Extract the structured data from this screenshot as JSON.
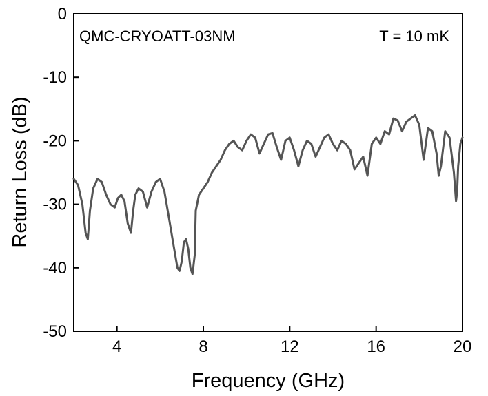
{
  "chart_data": {
    "type": "line",
    "title": "",
    "xlabel": "Frequency (GHz)",
    "ylabel": "Return Loss (dB)",
    "xlim": [
      2,
      20
    ],
    "ylim": [
      -50,
      0
    ],
    "xticks": [
      4,
      8,
      12,
      16,
      20
    ],
    "yticks": [
      0,
      -10,
      -20,
      -30,
      -40,
      -50
    ],
    "grid": false,
    "line_color": "#555555",
    "annotations": [
      {
        "text": "QMC-CRYOATT-03NM",
        "position": "top-left"
      },
      {
        "text": "T = 10 mK",
        "position": "top-right"
      }
    ],
    "series": [
      {
        "x": [
          2.0,
          2.2,
          2.4,
          2.55,
          2.65,
          2.75,
          2.9,
          3.1,
          3.3,
          3.5,
          3.7,
          3.9,
          4.05,
          4.2,
          4.35,
          4.5,
          4.65,
          4.75,
          4.85,
          5.0,
          5.2,
          5.4,
          5.6,
          5.8,
          6.0,
          6.2,
          6.4,
          6.6,
          6.8,
          6.9,
          7.0,
          7.1,
          7.2,
          7.3,
          7.4,
          7.5,
          7.6,
          7.65,
          7.8,
          8.0,
          8.2,
          8.4,
          8.6,
          8.8,
          9.0,
          9.2,
          9.4,
          9.6,
          9.8,
          10.0,
          10.2,
          10.4,
          10.6,
          10.8,
          11.0,
          11.2,
          11.4,
          11.6,
          11.8,
          12.0,
          12.2,
          12.4,
          12.6,
          12.8,
          13.0,
          13.2,
          13.4,
          13.6,
          13.8,
          14.0,
          14.2,
          14.4,
          14.6,
          14.8,
          15.0,
          15.2,
          15.4,
          15.6,
          15.8,
          16.0,
          16.2,
          16.4,
          16.6,
          16.8,
          17.0,
          17.2,
          17.4,
          17.6,
          17.8,
          18.0,
          18.2,
          18.4,
          18.6,
          18.8,
          18.9,
          19.0,
          19.2,
          19.4,
          19.6,
          19.7,
          19.75,
          19.8,
          19.9,
          20.0
        ],
        "y": [
          -26.0,
          -27.0,
          -30.0,
          -34.5,
          -35.5,
          -31.0,
          -27.5,
          -26.0,
          -26.5,
          -28.5,
          -30.0,
          -30.5,
          -29.0,
          -28.5,
          -29.5,
          -33.0,
          -34.5,
          -31.0,
          -28.5,
          -27.5,
          -28.0,
          -30.5,
          -28.0,
          -26.5,
          -26.0,
          -28.0,
          -32.0,
          -36.0,
          -40.0,
          -40.5,
          -39.0,
          -36.0,
          -35.5,
          -37.0,
          -40.0,
          -41.0,
          -38.0,
          -31.0,
          -28.5,
          -27.5,
          -26.5,
          -25.0,
          -24.0,
          -23.0,
          -21.5,
          -20.5,
          -20.0,
          -21.0,
          -21.5,
          -20.0,
          -19.0,
          -19.5,
          -22.0,
          -20.5,
          -19.0,
          -18.8,
          -21.0,
          -23.0,
          -20.0,
          -19.5,
          -21.5,
          -24.0,
          -21.5,
          -20.0,
          -20.5,
          -22.5,
          -21.0,
          -19.5,
          -19.0,
          -20.5,
          -21.5,
          -20.0,
          -20.5,
          -21.5,
          -24.5,
          -23.5,
          -22.5,
          -25.5,
          -20.5,
          -19.5,
          -20.5,
          -18.5,
          -19.0,
          -16.5,
          -16.8,
          -18.5,
          -17.0,
          -16.5,
          -16.0,
          -17.5,
          -23.0,
          -18.0,
          -18.5,
          -22.0,
          -25.5,
          -24.0,
          -18.5,
          -19.5,
          -25.0,
          -29.5,
          -28.0,
          -24.0,
          -20.5,
          -19.5
        ]
      }
    ]
  }
}
